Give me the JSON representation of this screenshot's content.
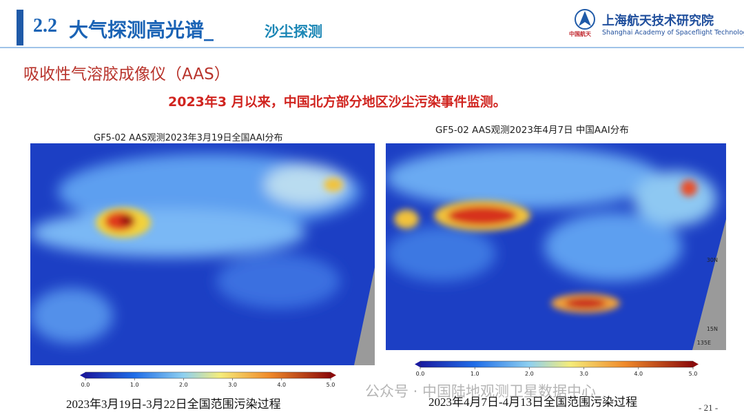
{
  "header": {
    "section": "2.2",
    "title": "大气探测高光谱_",
    "subtitle": "沙尘探测",
    "logo_text": "中国航天",
    "org_cn": "上海航天技术研究院",
    "org_en": "Shanghai Academy of Spaceflight Technology"
  },
  "heading": "吸收性气溶胶成像仪（AAS）",
  "headline": "2023年3 月以来，中国北方部分地区沙尘污染事件监测。",
  "panels": [
    {
      "title": "GF5-02 AAS观测2023年3月19日全国AAI分布",
      "colorbar_ticks": [
        "0.0",
        "1.0",
        "2.0",
        "3.0",
        "4.0",
        "5.0"
      ],
      "caption": "2023年3月19日-3月22日全国范围污染过程"
    },
    {
      "title": "GF5-02 AAS观测2023年4月7日 中国AAI分布",
      "map_labels": [
        "30N",
        "15N",
        "135E"
      ],
      "colorbar_ticks": [
        "0.0",
        "1.0",
        "2.0",
        "3.0",
        "4.0",
        "5.0"
      ],
      "caption": "2023年4月7日-4月13日全国范围污染过程"
    }
  ],
  "watermark": "公众号 · 中国陆地观测卫星数据中心",
  "page_number": "- 21 -"
}
